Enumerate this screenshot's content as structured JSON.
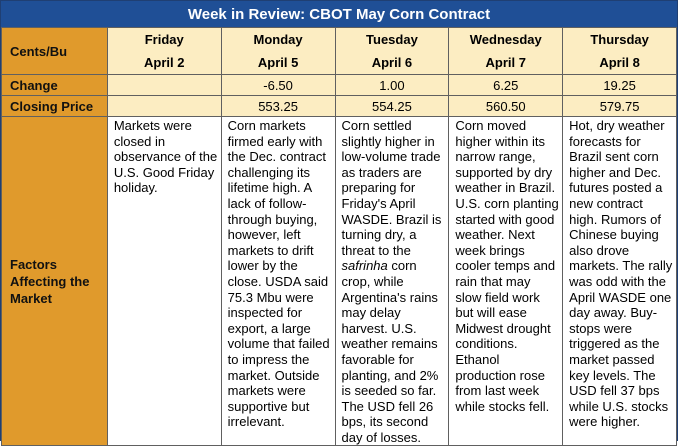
{
  "title": "Week in Review: CBOT May Corn Contract",
  "row_labels": {
    "units": "Cents/Bu",
    "change": "Change",
    "closing": "Closing Price",
    "factors": "Factors Affecting the Market"
  },
  "days": [
    {
      "day": "Friday",
      "date": "April 2",
      "change": "",
      "close": "",
      "factors_a": "Markets were closed in observance of the U.S. Good Friday holiday.",
      "factors_i": "",
      "factors_b": ""
    },
    {
      "day": "Monday",
      "date": "April 5",
      "change": "-6.50",
      "close": "553.25",
      "factors_a": "Corn markets firmed early with the Dec. contract challenging its lifetime high. A lack of follow-through buying, however, left markets to drift lower by the close. USDA said 75.3 Mbu were inspected for export, a large volume that failed to impress the market. Outside markets were supportive but irrelevant.",
      "factors_i": "",
      "factors_b": ""
    },
    {
      "day": "Tuesday",
      "date": "April 6",
      "change": "1.00",
      "close": "554.25",
      "factors_a": "Corn settled slightly higher in low-volume trade as traders are preparing for Friday's April WASDE. Brazil is turning dry, a threat to the ",
      "factors_i": "safrinha",
      "factors_b": " corn crop, while Argentina's rains may delay harvest. U.S. weather remains favorable for planting, and 2% is seeded so far. The USD fell 26 bps, its second day of losses."
    },
    {
      "day": "Wednesday",
      "date": "April 7",
      "change": "6.25",
      "close": "560.50",
      "factors_a": "Corn moved higher within its narrow range, supported by dry weather in Brazil. U.S. corn planting started with good weather. Next week brings cooler temps and rain that may slow field work but will ease Midwest drought conditions. Ethanol production rose from last week while stocks fell.",
      "factors_i": "",
      "factors_b": ""
    },
    {
      "day": "Thursday",
      "date": "April 8",
      "change": "19.25",
      "close": "579.75",
      "factors_a": "Hot, dry weather forecasts for Brazil sent corn higher and Dec. futures posted a new contract high. Rumors of Chinese buying also drove markets. The rally was odd with the April WASDE one day away. Buy-stops were triggered as the market passed key levels. The USD fell 37 bps while U.S. stocks were higher.",
      "factors_i": "",
      "factors_b": ""
    }
  ]
}
